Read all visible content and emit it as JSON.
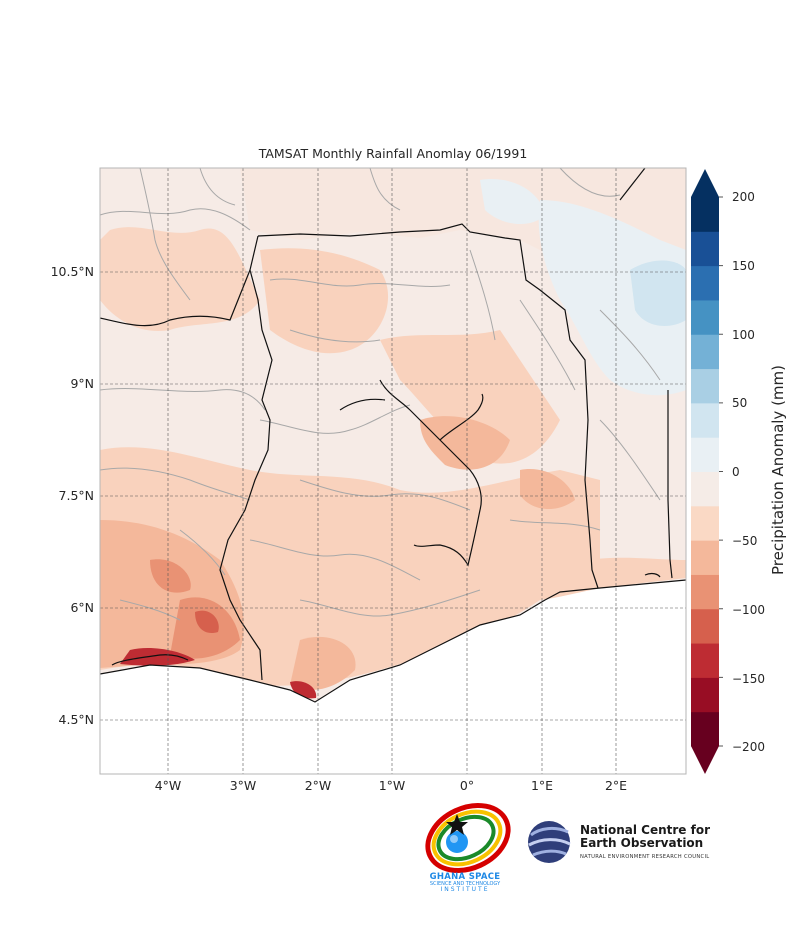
{
  "map": {
    "title": "TAMSAT Monthly Rainfall Anomlay 06/1991",
    "lat_labels": [
      "10.5°N",
      "9°N",
      "7.5°N",
      "6°N",
      "4.5°N"
    ],
    "lon_labels": [
      "4°W",
      "3°W",
      "2°W",
      "1°W",
      "0°",
      "1°E",
      "2°E"
    ]
  },
  "colorbar": {
    "title": "Precipitation Anomaly (mm)",
    "tick_labels": [
      "200",
      "150",
      "100",
      "50",
      "0",
      "−50",
      "−100",
      "−150",
      "−200"
    ],
    "colors": [
      "#67001f",
      "#980d24",
      "#be2c33",
      "#d6604d",
      "#e99274",
      "#f4b89b",
      "#fad9c5",
      "#f5ece7",
      "#e9f0f4",
      "#d1e5f0",
      "#a9cfe4",
      "#74b1d6",
      "#4592c3",
      "#2b6fb1",
      "#195096",
      "#053061"
    ]
  },
  "logos": {
    "gssti": {
      "line1": "GHANA SPACE",
      "line2": "SCIENCE AND TECHNOLOGY",
      "line3": "INSTITUTE"
    },
    "nceo": {
      "name": "National Centre for Earth Observation",
      "sub": "NATURAL ENVIRONMENT RESEARCH COUNCIL"
    }
  }
}
